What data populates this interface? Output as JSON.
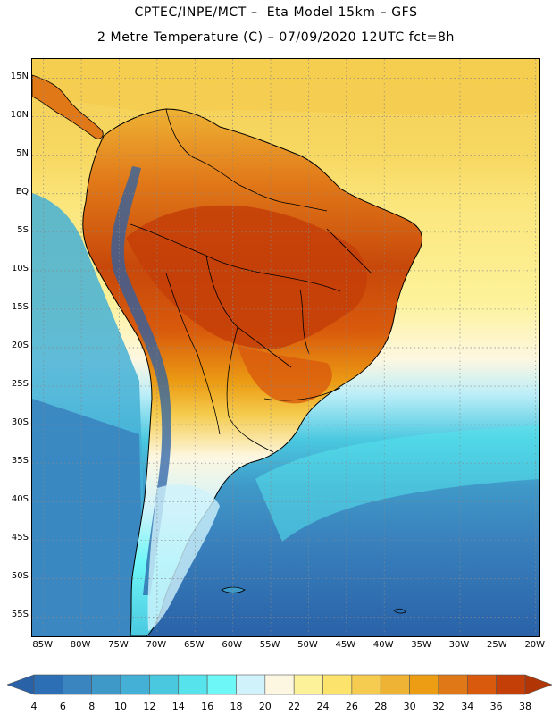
{
  "header": {
    "line1": "CPTEC/INPE/MCT –  Eta Model 15km – GFS",
    "line2": "2 Metre Temperature (C) – 07/09/2020 12UTC fct=8h"
  },
  "map": {
    "lat_labels": [
      "15N",
      "10N",
      "5N",
      "EQ",
      "5S",
      "10S",
      "15S",
      "20S",
      "25S",
      "30S",
      "35S",
      "40S",
      "45S",
      "50S",
      "55S"
    ],
    "lon_labels": [
      "85W",
      "80W",
      "75W",
      "70W",
      "65W",
      "60W",
      "55W",
      "50W",
      "45W",
      "40W",
      "35W",
      "30W",
      "25W",
      "20W"
    ],
    "lat_range": [
      17.5,
      -57.5
    ],
    "lon_range": [
      -86.5,
      -19.5
    ],
    "temperature_zones": [
      {
        "zone": "ocean-caribbean",
        "temp_c": 27
      },
      {
        "zone": "atlantic-equatorial",
        "temp_c": 26
      },
      {
        "zone": "atlantic-south-tropical",
        "temp_c": 22
      },
      {
        "zone": "atlantic-south-subtropical",
        "temp_c": 16
      },
      {
        "zone": "pacific-tropical",
        "temp_c": 16
      },
      {
        "zone": "southern-ocean",
        "temp_c": 6
      },
      {
        "zone": "amazon-core",
        "temp_c": 36
      },
      {
        "zone": "andes-high",
        "temp_c": 2
      }
    ]
  },
  "legend": {
    "values": [
      "4",
      "6",
      "8",
      "10",
      "12",
      "14",
      "16",
      "18",
      "20",
      "22",
      "24",
      "26",
      "28",
      "30",
      "32",
      "34",
      "36",
      "38"
    ],
    "colors": [
      "#2a62a8",
      "#2d6fb4",
      "#3a84bf",
      "#3f99c8",
      "#44b0d6",
      "#4ac8e0",
      "#56e3ec",
      "#6ef7f7",
      "#d0f3fb",
      "#fdf7e1",
      "#fdf29a",
      "#fbe36c",
      "#f5cc4f",
      "#eeb234",
      "#ec9d14",
      "#e17818",
      "#d95a0c",
      "#c43e08",
      "#b23505",
      "#2a5aa0"
    ]
  }
}
